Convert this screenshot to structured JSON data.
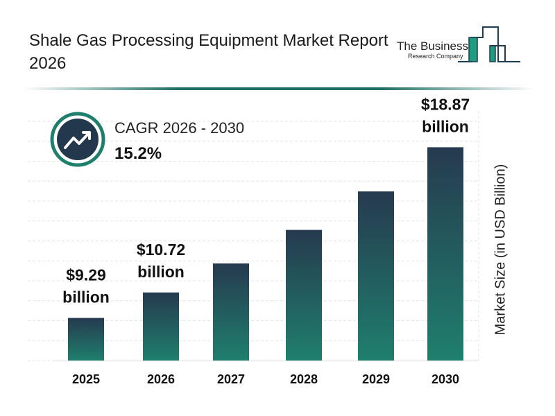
{
  "title": "Shale Gas Processing Equipment Market Report 2026",
  "logo": {
    "line1": "The Business",
    "line2": "Research Company"
  },
  "cagr": {
    "label": "CAGR 2026 - 2030",
    "value": "15.2%",
    "icon": "trending-up-icon"
  },
  "colors": {
    "bar_top": "#263a4f",
    "bar_bottom": "#1f7f6d",
    "accent": "#1f6f66"
  },
  "chart_data": {
    "type": "bar",
    "categories": [
      "2025",
      "2026",
      "2027",
      "2028",
      "2029",
      "2030"
    ],
    "values": [
      9.29,
      10.72,
      12.35,
      14.23,
      16.39,
      18.87
    ],
    "data_labels": [
      {
        "index": 0,
        "line1": "$9.29",
        "line2": "billion"
      },
      {
        "index": 1,
        "line1": "$10.72",
        "line2": "billion"
      },
      {
        "index": 5,
        "line1": "$18.87",
        "line2": "billion"
      }
    ],
    "ylabel": "Market Size (in USD Billion)",
    "xlabel": "",
    "grid": true,
    "axis_position": "right"
  }
}
